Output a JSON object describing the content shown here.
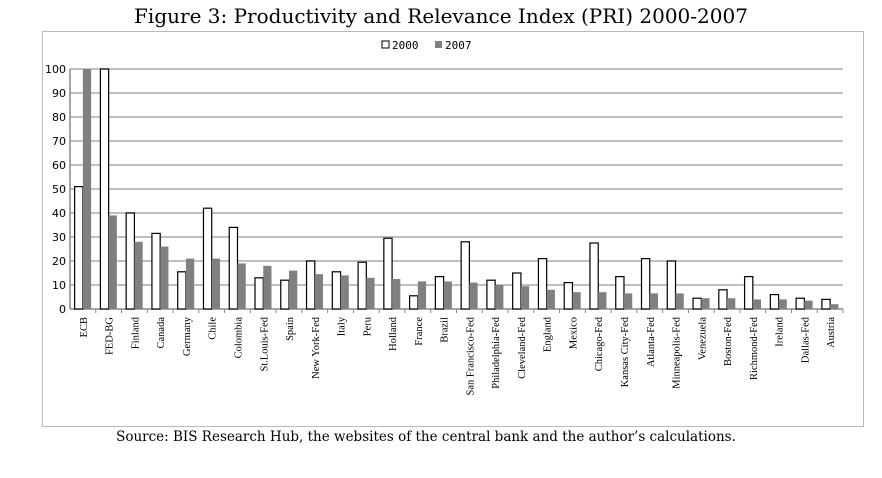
{
  "title": "Figure 3: Productivity and Relevance Index (PRI) 2000-2007",
  "source": "Source: BIS Research Hub, the websites of the central bank and the author’s calculations.",
  "chart_data": {
    "type": "bar",
    "title": "Figure 3: Productivity and Relevance Index (PRI) 2000-2007",
    "xlabel": "",
    "ylabel": "",
    "ylim": [
      0,
      100
    ],
    "yticks": [
      0,
      10,
      20,
      30,
      40,
      50,
      60,
      70,
      80,
      90,
      100
    ],
    "grid": true,
    "legend": "top",
    "categories": [
      "ECB",
      "FED-BG",
      "Finland",
      "Canada",
      "Germany",
      "Chile",
      "Colombia",
      "St.Louis-Fed",
      "Spain",
      "New York-Fed",
      "Italy",
      "Peru",
      "Holland",
      "France",
      "Brazil",
      "San Francisco-Fed",
      "Philadelphia-Fed",
      "Cleveland-Fed",
      "England",
      "Mexico",
      "Chicago-Fed",
      "Kansas City-Fed",
      "Atlanta-Fed",
      "Minneapolis-Fed",
      "Venezuela",
      "Boston-Fed",
      "Richmond-Fed",
      "Ireland",
      "Dallas-Fed",
      "Austria"
    ],
    "series": [
      {
        "name": "2000",
        "color": "#ffffff",
        "values": [
          51,
          100,
          40,
          31.5,
          15.5,
          42,
          34,
          13,
          12,
          20,
          15.5,
          19.5,
          29.5,
          5.5,
          13.5,
          28,
          12,
          15,
          21,
          11,
          27.5,
          13.5,
          21,
          20,
          4.5,
          8,
          13.5,
          6,
          4.5,
          4
        ]
      },
      {
        "name": "2007",
        "color": "#808080",
        "values": [
          100,
          39,
          28,
          26,
          21,
          21,
          19,
          18,
          16,
          14.5,
          14,
          13,
          12.5,
          11.5,
          11.5,
          11,
          10,
          9.5,
          8,
          7,
          7,
          6.5,
          6.5,
          6.5,
          4.5,
          4.5,
          4,
          4,
          3.5,
          2
        ]
      }
    ]
  }
}
